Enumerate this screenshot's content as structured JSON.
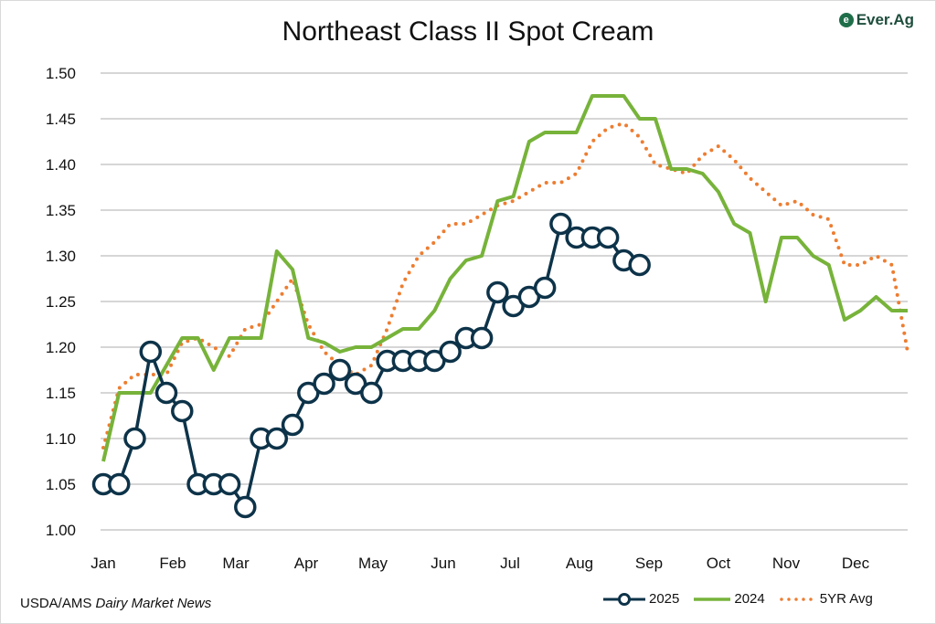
{
  "chart_data": {
    "type": "line",
    "title": "Northeast Class II Spot Cream",
    "xlabel": "",
    "ylabel": "",
    "ylim": [
      1.0,
      1.5
    ],
    "yticks": [
      "1.00",
      "1.05",
      "1.10",
      "1.15",
      "1.20",
      "1.25",
      "1.30",
      "1.35",
      "1.40",
      "1.45",
      "1.50"
    ],
    "xticks": [
      "Jan",
      "Feb",
      "Mar",
      "Apr",
      "May",
      "Jun",
      "Jul",
      "Aug",
      "Sep",
      "Oct",
      "Nov",
      "Dec"
    ],
    "x_unit": "week of year (1-52)",
    "grid": true,
    "legend_position": "bottom-right",
    "series": [
      {
        "name": "2025",
        "color": "#0d3349",
        "style": "line-markers",
        "values": [
          1.05,
          1.05,
          1.1,
          1.195,
          1.15,
          1.13,
          1.05,
          1.05,
          1.05,
          1.025,
          1.1,
          1.1,
          1.115,
          1.15,
          1.16,
          1.175,
          1.16,
          1.15,
          1.185,
          1.185,
          1.185,
          1.185,
          1.195,
          1.21,
          1.21,
          1.26,
          1.245,
          1.255,
          1.265,
          1.335,
          1.32,
          1.32,
          1.32,
          1.295,
          1.29
        ]
      },
      {
        "name": "2024",
        "color": "#77b33a",
        "style": "solid",
        "values": [
          1.075,
          1.15,
          1.15,
          1.15,
          1.18,
          1.21,
          1.21,
          1.175,
          1.21,
          1.21,
          1.21,
          1.305,
          1.285,
          1.21,
          1.205,
          1.195,
          1.2,
          1.2,
          1.21,
          1.22,
          1.22,
          1.24,
          1.275,
          1.295,
          1.3,
          1.36,
          1.365,
          1.425,
          1.435,
          1.435,
          1.435,
          1.475,
          1.475,
          1.475,
          1.45,
          1.45,
          1.395,
          1.395,
          1.39,
          1.37,
          1.335,
          1.325,
          1.25,
          1.32,
          1.32,
          1.3,
          1.29,
          1.23,
          1.24,
          1.255,
          1.24,
          1.24
        ]
      },
      {
        "name": "5YR Avg",
        "color": "#ed7d31",
        "style": "dotted",
        "values": [
          1.09,
          1.155,
          1.17,
          1.17,
          1.17,
          1.205,
          1.21,
          1.2,
          1.19,
          1.22,
          1.225,
          1.25,
          1.275,
          1.225,
          1.195,
          1.18,
          1.17,
          1.18,
          1.22,
          1.27,
          1.3,
          1.315,
          1.335,
          1.335,
          1.345,
          1.355,
          1.36,
          1.37,
          1.38,
          1.38,
          1.39,
          1.425,
          1.44,
          1.445,
          1.43,
          1.4,
          1.395,
          1.39,
          1.41,
          1.42,
          1.405,
          1.385,
          1.37,
          1.355,
          1.36,
          1.345,
          1.34,
          1.29,
          1.29,
          1.3,
          1.29,
          1.195
        ]
      }
    ]
  },
  "logo_text": "Ever.Ag",
  "source": {
    "prefix": "USDA/AMS ",
    "italic": "Dairy Market News"
  }
}
